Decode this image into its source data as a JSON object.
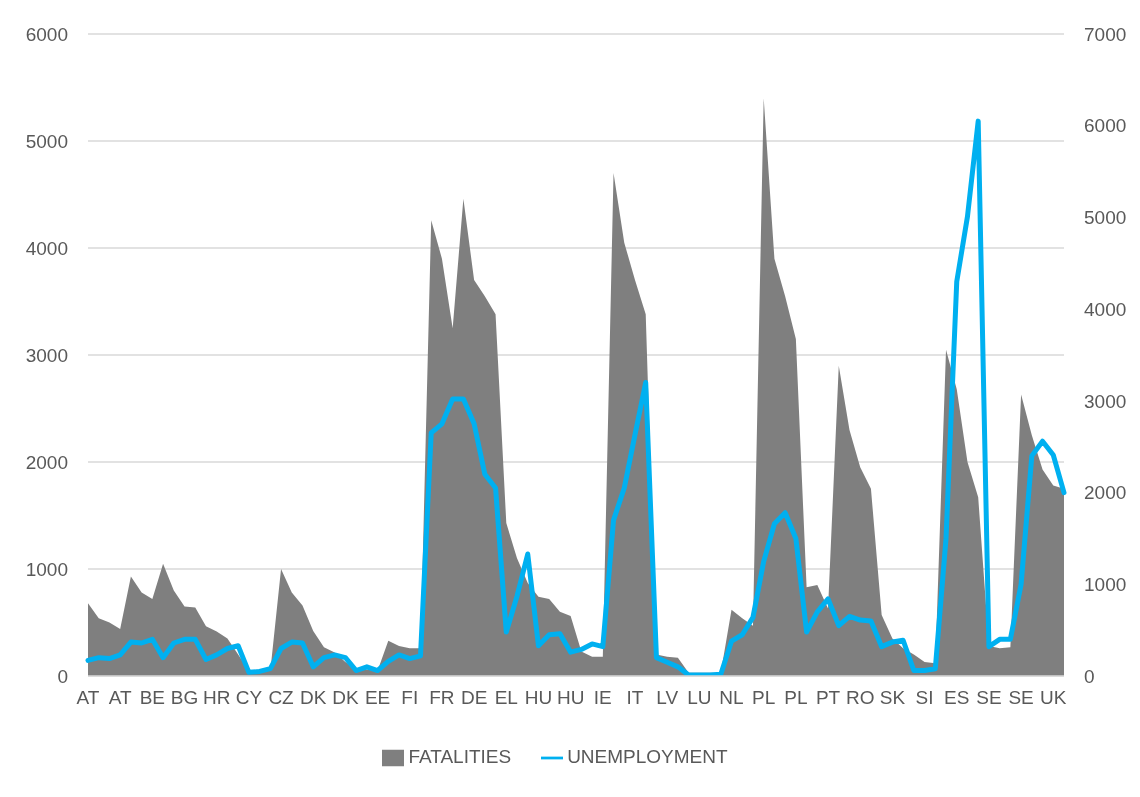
{
  "chart_data": {
    "type": "area",
    "categories": [
      "AT",
      null,
      null,
      "AT",
      null,
      null,
      "BE",
      null,
      null,
      "BG",
      null,
      null,
      "HR",
      null,
      null,
      "CY",
      null,
      null,
      "CZ",
      null,
      null,
      "DK",
      null,
      null,
      "DK",
      null,
      null,
      "EE",
      null,
      null,
      "FI",
      null,
      null,
      "FR",
      null,
      null,
      "DE",
      null,
      null,
      "EL",
      null,
      null,
      "HU",
      null,
      null,
      "HU",
      null,
      null,
      "IE",
      null,
      null,
      "IT",
      null,
      null,
      "LV",
      null,
      null,
      "LU",
      null,
      null,
      "NL",
      null,
      null,
      "PL",
      null,
      null,
      "PL",
      null,
      null,
      "PT",
      null,
      null,
      "RO",
      null,
      null,
      "SK",
      null,
      null,
      "SI",
      null,
      null,
      "ES",
      null,
      null,
      "SE",
      null,
      null,
      "SE",
      null,
      null,
      "UK",
      null
    ],
    "series": [
      {
        "name": "FATALITIES",
        "color": "#7f7f7f",
        "values": [
          680,
          540,
          500,
          440,
          930,
          780,
          720,
          1050,
          800,
          650,
          640,
          465,
          415,
          350,
          200,
          50,
          60,
          50,
          1000,
          780,
          660,
          420,
          270,
          220,
          130,
          70,
          60,
          50,
          330,
          280,
          260,
          260,
          4260,
          3900,
          3250,
          4460,
          3700,
          3550,
          3380,
          1430,
          1100,
          870,
          740,
          720,
          600,
          560,
          230,
          180,
          180,
          4700,
          4050,
          3700,
          3380,
          200,
          180,
          170,
          30,
          30,
          30,
          30,
          620,
          540,
          470,
          5400,
          3900,
          3550,
          3150,
          830,
          850,
          630,
          2900,
          2300,
          1950,
          1750,
          570,
          350,
          260,
          200,
          130,
          120,
          3050,
          2680,
          2000,
          1670,
          280,
          260,
          270,
          2630,
          2250,
          1930,
          1780,
          1750
        ]
      },
      {
        "name": "UNEMPLOYMENT",
        "type": "line",
        "axis": "y2",
        "color": "#00b0f0",
        "line_style": "solid",
        "marker": "none",
        "values": [
          170,
          200,
          190,
          230,
          370,
          360,
          400,
          200,
          360,
          400,
          400,
          180,
          230,
          300,
          330,
          40,
          50,
          80,
          300,
          370,
          360,
          100,
          200,
          230,
          200,
          60,
          100,
          60,
          160,
          230,
          190,
          220,
          2650,
          2750,
          3020,
          3020,
          2750,
          2200,
          2050,
          480,
          870,
          1330,
          330,
          450,
          460,
          260,
          290,
          350,
          320,
          1700,
          2050,
          2630,
          3200,
          200,
          150,
          100,
          10,
          10,
          10,
          20,
          380,
          450,
          640,
          1250,
          1660,
          1780,
          1500,
          480,
          700,
          840,
          550,
          650,
          610,
          600,
          320,
          370,
          390,
          60,
          60,
          80,
          1500,
          4300,
          5010,
          6050,
          320,
          400,
          400,
          1000,
          2400,
          2560,
          2410,
          2000
        ]
      }
    ],
    "ylim": [
      0,
      6000
    ],
    "yticks": [
      0,
      1000,
      2000,
      3000,
      4000,
      5000,
      6000
    ],
    "y2lim": [
      0,
      7000
    ],
    "y2ticks": [
      0,
      1000,
      2000,
      3000,
      4000,
      5000,
      6000,
      7000
    ],
    "grid": "y",
    "legend": "bottom"
  }
}
